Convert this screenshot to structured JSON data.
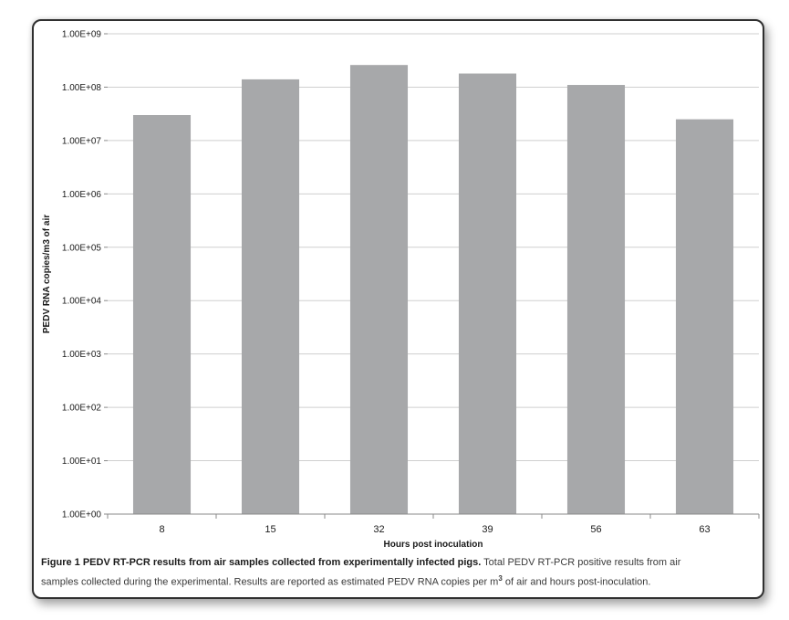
{
  "chart_data": {
    "type": "bar",
    "categories": [
      "8",
      "15",
      "32",
      "39",
      "56",
      "63"
    ],
    "values": [
      30000000,
      140000000,
      260000000,
      180000000,
      110000000,
      25000000
    ],
    "xlabel": "Hours post inoculation",
    "ylabel": "PEDV RNA copies/m3 of air",
    "yscale": "log",
    "ylim": [
      1,
      1000000000
    ],
    "yticks": [
      "1.00E+00",
      "1.00E+01",
      "1.00E+02",
      "1.00E+03",
      "1.00E+04",
      "1.00E+05",
      "1.00E+06",
      "1.00E+07",
      "1.00E+08",
      "1.00E+09"
    ],
    "grid": true,
    "bar_color": "#a7a8aa",
    "grid_color": "#cfcfcf"
  },
  "caption": {
    "title": "Figure 1 PEDV RT-PCR results from air samples collected from experimentally infected pigs.",
    "body_line1": "Total PEDV RT-PCR positive results from air",
    "body_line2_a": "samples collected during the experimental. Results are reported as estimated PEDV RNA copies per m",
    "body_line2_sup": "3",
    "body_line2_b": " of air and hours post-inoculation."
  }
}
